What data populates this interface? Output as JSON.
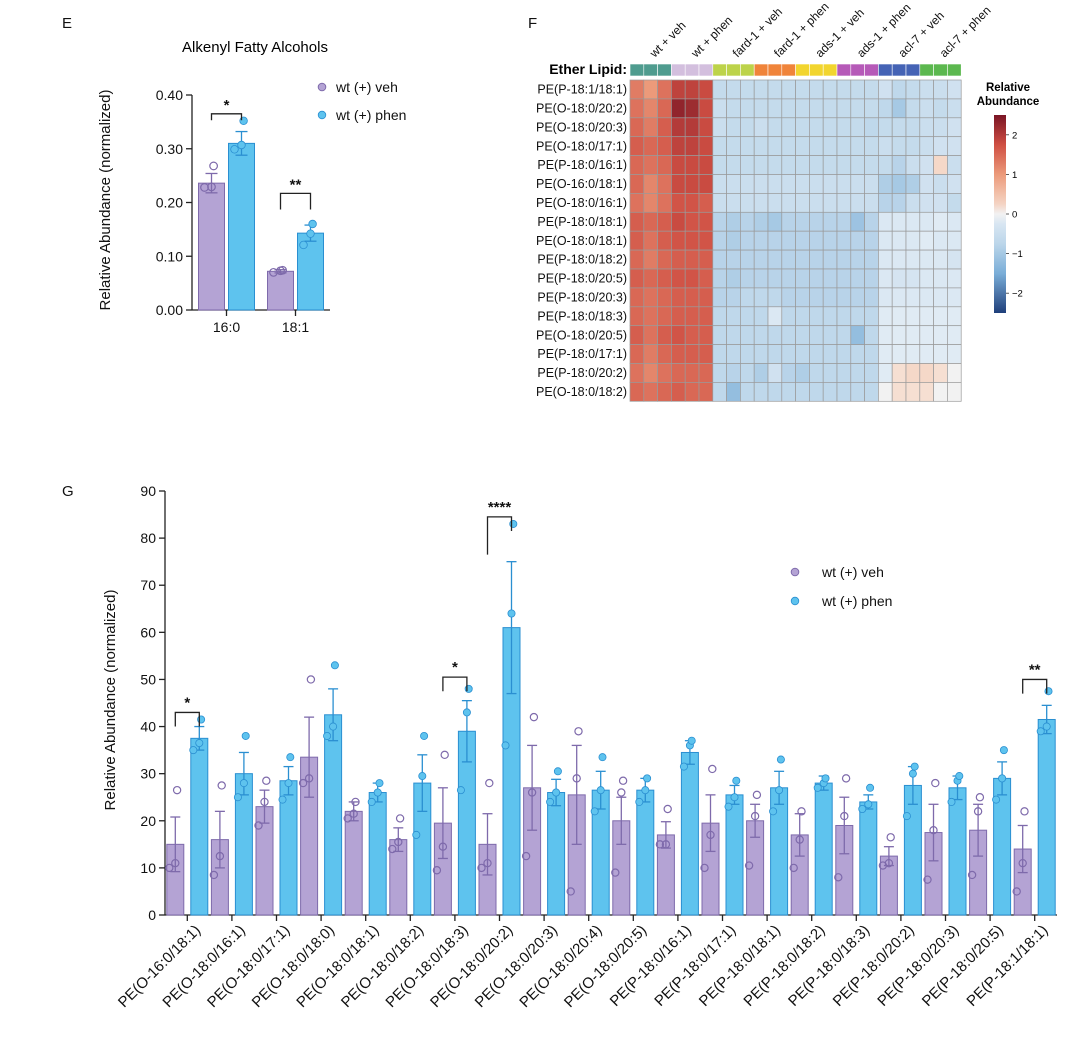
{
  "colors": {
    "veh_fill": "#b4a3d4",
    "veh_edge": "#7e6aab",
    "phen_fill": "#5ec3ee",
    "phen_edge": "#2a8fd1",
    "heat_high": "#7a1424",
    "heat_mid": "#f2f2f2",
    "heat_low": "#1f3f7a"
  },
  "panels": {
    "E": {
      "letter": "E",
      "chart_data": {
        "type": "bar",
        "title": "Alkenyl Fatty Alcohols",
        "ylabel": "Relative Abundance (normalized)",
        "xlabel": "",
        "ylim": [
          0,
          0.4
        ],
        "yticks": [
          "0.00",
          "0.10",
          "0.20",
          "0.30",
          "0.40"
        ],
        "categories": [
          "16:0",
          "18:1"
        ],
        "series": [
          {
            "name": "wt (+) veh",
            "values": [
              0.236,
              0.072
            ],
            "err": [
              0.018,
              0.003
            ],
            "points": [
              [
                0.228,
                0.229,
                0.268
              ],
              [
                0.07,
                0.073,
                0.074
              ]
            ]
          },
          {
            "name": "wt (+) phen",
            "values": [
              0.31,
              0.143
            ],
            "err": [
              0.022,
              0.015
            ],
            "points": [
              [
                0.299,
                0.307,
                0.352
              ],
              [
                0.121,
                0.142,
                0.16
              ]
            ]
          }
        ],
        "significance": [
          "*",
          "**"
        ],
        "legend_position": "top-right"
      }
    },
    "F": {
      "letter": "F",
      "chart_data": {
        "type": "heatmap",
        "group_bar_label": "Ether Lipid:",
        "colorbar_title": [
          "Relative",
          "Abundance"
        ],
        "colorbar_ticks": [
          "2",
          "1",
          "0",
          "-1",
          "-2"
        ],
        "vmin": -2.5,
        "vmax": 2.5,
        "groups": [
          {
            "label": "wt + veh",
            "color": "#4f9c8f"
          },
          {
            "label": "wt + phen",
            "color": "#d3bfde"
          },
          {
            "label": "fard-1 + veh",
            "color": "#bdd34a"
          },
          {
            "label": "fard-1 + phen",
            "color": "#f0843a"
          },
          {
            "label": "ads-1 + veh",
            "color": "#f2d52e"
          },
          {
            "label": "ads-1 + phen",
            "color": "#b65ab8"
          },
          {
            "label": "acl-7 + veh",
            "color": "#4563b5"
          },
          {
            "label": "acl-7 + phen",
            "color": "#5cb84f"
          }
        ],
        "rows": [
          {
            "label": "PE(P-18:1/18:1)",
            "values": [
              1.3,
              1.0,
              1.4,
              1.9,
              1.9,
              1.8,
              -0.6,
              -0.6,
              -0.6,
              -0.6,
              -0.6,
              -0.6,
              -0.6,
              -0.6,
              -0.6,
              -0.6,
              -0.6,
              -0.6,
              -0.4,
              -0.7,
              -0.6,
              -0.5,
              -0.5,
              -0.4
            ]
          },
          {
            "label": "PE(O-18:0/20:2)",
            "values": [
              1.4,
              1.2,
              1.5,
              2.3,
              2.2,
              1.8,
              -0.5,
              -0.6,
              -0.6,
              -0.6,
              -0.6,
              -0.6,
              -0.6,
              -0.6,
              -0.6,
              -0.6,
              -0.6,
              -0.6,
              -0.7,
              -1.0,
              -0.6,
              -0.5,
              -0.6,
              -0.5
            ]
          },
          {
            "label": "PE(O-18:0/20:3)",
            "values": [
              1.5,
              1.3,
              1.6,
              2.0,
              2.0,
              1.8,
              -0.5,
              -0.6,
              -0.6,
              -0.5,
              -0.6,
              -0.6,
              -0.6,
              -0.6,
              -0.6,
              -0.6,
              -0.6,
              -0.7,
              -0.6,
              -0.6,
              -0.6,
              -0.5,
              -0.5,
              -0.4
            ]
          },
          {
            "label": "PE(O-18:0/17:1)",
            "values": [
              1.6,
              1.5,
              1.6,
              1.9,
              1.9,
              1.8,
              -0.6,
              -0.6,
              -0.6,
              -0.6,
              -0.6,
              -0.6,
              -0.6,
              -0.6,
              -0.6,
              -0.6,
              -0.6,
              -0.6,
              -0.5,
              -0.6,
              -0.6,
              -0.5,
              -0.4,
              -0.4
            ]
          },
          {
            "label": "PE(P-18:0/16:1)",
            "values": [
              1.5,
              1.4,
              1.5,
              1.8,
              1.8,
              1.8,
              -0.6,
              -0.6,
              -0.6,
              -0.6,
              -0.6,
              -0.6,
              -0.6,
              -0.6,
              -0.6,
              -0.6,
              -0.6,
              -0.6,
              -0.6,
              -0.8,
              -0.5,
              -0.4,
              0.2,
              -0.5
            ]
          },
          {
            "label": "PE(O-16:0/18:1)",
            "values": [
              1.5,
              1.2,
              1.4,
              1.8,
              1.8,
              1.8,
              -0.5,
              -0.5,
              -0.5,
              -0.5,
              -0.5,
              -0.5,
              -0.5,
              -0.5,
              -0.5,
              -0.5,
              -0.5,
              -0.5,
              -0.9,
              -1.0,
              -0.9,
              -0.4,
              -0.5,
              -0.4
            ]
          },
          {
            "label": "PE(O-18:0/16:1)",
            "values": [
              1.4,
              1.2,
              1.4,
              1.7,
              1.7,
              1.6,
              -0.5,
              -0.5,
              -0.5,
              -0.5,
              -0.5,
              -0.5,
              -0.5,
              -0.5,
              -0.5,
              -0.5,
              -0.5,
              -0.5,
              -0.8,
              -0.8,
              -0.5,
              -0.4,
              -0.4,
              -0.6
            ]
          },
          {
            "label": "PE(P-18:0/18:1)",
            "values": [
              1.6,
              1.5,
              1.6,
              1.8,
              1.7,
              1.7,
              -0.8,
              -0.9,
              -0.8,
              -0.9,
              -1.0,
              -0.8,
              -0.8,
              -0.8,
              -0.8,
              -0.8,
              -1.1,
              -0.8,
              -0.2,
              -0.2,
              -0.2,
              -0.2,
              -0.1,
              -0.2
            ]
          },
          {
            "label": "PE(O-18:0/18:1)",
            "values": [
              1.6,
              1.4,
              1.6,
              1.7,
              1.7,
              1.7,
              -0.8,
              -0.9,
              -0.8,
              -0.8,
              -0.8,
              -0.8,
              -0.8,
              -0.8,
              -0.8,
              -0.8,
              -0.8,
              -0.8,
              -0.2,
              -0.2,
              -0.2,
              -0.1,
              -0.2,
              -0.2
            ]
          },
          {
            "label": "PE(P-18:0/18:2)",
            "values": [
              1.5,
              1.3,
              1.5,
              1.6,
              1.6,
              1.6,
              -0.8,
              -0.8,
              -0.8,
              -0.8,
              -0.8,
              -0.8,
              -0.8,
              -0.8,
              -0.8,
              -0.8,
              -0.8,
              -0.8,
              -0.2,
              -0.2,
              -0.2,
              -0.2,
              -0.2,
              -0.3
            ]
          },
          {
            "label": "PE(P-18:0/20:5)",
            "values": [
              1.6,
              1.5,
              1.6,
              1.7,
              1.7,
              1.6,
              -0.8,
              -0.9,
              -0.8,
              -0.8,
              -0.8,
              -0.8,
              -0.8,
              -0.8,
              -0.8,
              -0.8,
              -0.8,
              -0.8,
              -0.2,
              -0.3,
              -0.3,
              -0.2,
              -0.2,
              -0.2
            ]
          },
          {
            "label": "PE(P-18:0/20:3)",
            "values": [
              1.5,
              1.4,
              1.5,
              1.6,
              1.6,
              1.6,
              -0.8,
              -0.8,
              -0.7,
              -0.7,
              -0.7,
              -0.8,
              -0.8,
              -0.8,
              -0.8,
              -0.8,
              -0.8,
              -0.8,
              -0.2,
              -0.2,
              -0.2,
              -0.2,
              -0.2,
              -0.2
            ]
          },
          {
            "label": "PE(P-18:0/18:3)",
            "values": [
              1.5,
              1.4,
              1.5,
              1.6,
              1.6,
              1.6,
              -0.7,
              -0.7,
              -0.7,
              -0.7,
              -0.2,
              -0.7,
              -0.7,
              -0.7,
              -0.7,
              -0.7,
              -0.7,
              -0.7,
              -0.1,
              -0.1,
              -0.1,
              -0.1,
              -0.1,
              -0.1
            ]
          },
          {
            "label": "PE(O-18:0/20:5)",
            "values": [
              1.6,
              1.4,
              1.6,
              1.7,
              1.6,
              1.6,
              -0.7,
              -0.7,
              -0.7,
              -0.7,
              -0.7,
              -0.7,
              -0.7,
              -0.7,
              -0.7,
              -0.7,
              -1.2,
              -0.7,
              -0.1,
              -0.1,
              -0.1,
              -0.1,
              -0.1,
              -0.1
            ]
          },
          {
            "label": "PE(P-18:0/17:1)",
            "values": [
              1.5,
              1.3,
              1.5,
              1.6,
              1.6,
              1.6,
              -0.7,
              -0.7,
              -0.7,
              -0.7,
              -0.7,
              -0.7,
              -0.7,
              -0.7,
              -0.7,
              -0.7,
              -0.7,
              -0.7,
              -0.1,
              -0.1,
              -0.1,
              -0.1,
              -0.1,
              -0.1
            ]
          },
          {
            "label": "PE(P-18:0/20:2)",
            "values": [
              1.4,
              1.2,
              1.4,
              1.5,
              1.5,
              1.5,
              -0.7,
              -0.8,
              -0.7,
              -0.9,
              -0.4,
              -0.8,
              -0.9,
              -0.7,
              -0.7,
              -0.7,
              -0.7,
              -0.7,
              -0.1,
              0.1,
              0.2,
              0.2,
              0.1,
              0.0
            ]
          },
          {
            "label": "PE(O-18:0/18:2)",
            "values": [
              1.5,
              1.4,
              1.5,
              1.6,
              1.5,
              1.5,
              -0.7,
              -1.2,
              -0.7,
              -0.7,
              -0.7,
              -0.7,
              -0.7,
              -0.7,
              -0.7,
              -0.7,
              -0.7,
              -0.7,
              0.0,
              0.1,
              0.1,
              0.1,
              0.0,
              0.0
            ]
          }
        ]
      }
    },
    "G": {
      "letter": "G",
      "chart_data": {
        "type": "bar",
        "title": "",
        "ylabel": "Relative Abundance (normalized)",
        "xlabel": "",
        "ylim": [
          0,
          90
        ],
        "yticks": [
          "0",
          "10",
          "20",
          "30",
          "40",
          "50",
          "60",
          "70",
          "80",
          "90"
        ],
        "categories": [
          "PE(O-16:0/18:1)",
          "PE(O-18:0/16:1)",
          "PE(O-18:0/17:1)",
          "PE(O-18:0/18:0)",
          "PE(O-18:0/18:1)",
          "PE(O-18:0/18:2)",
          "PE(O-18:0/18:3)",
          "PE(O-18:0/20:2)",
          "PE(O-18:0/20:3)",
          "PE(O-18:0/20:4)",
          "PE(O-18:0/20:5)",
          "PE(P-18:0/16:1)",
          "PE(P-18:0/17:1)",
          "PE(P-18:0/18:1)",
          "PE(P-18:0/18:2)",
          "PE(P-18:0/18:3)",
          "PE(P-18:0/20:2)",
          "PE(P-18:0/20:3)",
          "PE(P-18:0/20:5)",
          "PE(P-18:1/18:1)"
        ],
        "series": [
          {
            "name": "wt (+) veh",
            "values": [
              15,
              16,
              23,
              33.5,
              22,
              16,
              19.5,
              15,
              27,
              25.5,
              20,
              17,
              19.5,
              20,
              17,
              19,
              12.5,
              17.5,
              18,
              14
            ],
            "err": [
              5.8,
              6,
              3.5,
              8.5,
              2,
              2.5,
              7.5,
              6.5,
              9,
              10.5,
              5,
              2.8,
              6,
              3.5,
              4.5,
              6,
              2,
              6,
              5.5,
              5
            ],
            "points": [
              [
                10,
                11,
                26.5
              ],
              [
                8.5,
                12.5,
                27.5
              ],
              [
                19,
                24,
                28.5
              ],
              [
                28,
                29,
                50
              ],
              [
                20.5,
                21.5,
                24
              ],
              [
                14,
                15.5,
                20.5
              ],
              [
                9.5,
                14.5,
                34
              ],
              [
                10,
                11,
                28
              ],
              [
                12.5,
                26,
                42
              ],
              [
                5,
                29,
                39
              ],
              [
                9,
                26,
                28.5
              ],
              [
                15,
                15,
                22.5
              ],
              [
                10,
                17,
                31
              ],
              [
                10.5,
                21,
                25.5
              ],
              [
                10,
                16,
                22
              ],
              [
                8,
                21,
                29
              ],
              [
                10.5,
                11,
                16.5
              ],
              [
                7.5,
                18,
                28
              ],
              [
                8.5,
                22,
                25
              ],
              [
                5,
                11,
                22
              ]
            ]
          },
          {
            "name": "wt (+) phen",
            "values": [
              37.5,
              30,
              28.5,
              42.5,
              26,
              28,
              39,
              61,
              26,
              26.5,
              26.5,
              34.5,
              25.5,
              27,
              28,
              24,
              27.5,
              27,
              29,
              41.5
            ],
            "err": [
              2.5,
              4.5,
              3,
              5.5,
              2,
              6,
              6.5,
              14,
              2.8,
              4,
              2.5,
              2.5,
              2,
              3.5,
              1.5,
              1.5,
              4,
              2.5,
              3.5,
              3
            ],
            "points": [
              [
                35,
                36.5,
                41.5
              ],
              [
                25,
                28,
                38
              ],
              [
                24.5,
                28,
                33.5
              ],
              [
                38,
                40,
                53
              ],
              [
                24,
                26,
                28
              ],
              [
                17,
                29.5,
                38
              ],
              [
                26.5,
                43,
                48
              ],
              [
                36,
                64,
                83
              ],
              [
                24,
                26,
                30.5
              ],
              [
                22,
                26.5,
                33.5
              ],
              [
                24,
                26.5,
                29
              ],
              [
                31.5,
                36,
                37
              ],
              [
                23,
                25,
                28.5
              ],
              [
                22,
                26.5,
                33
              ],
              [
                27,
                28,
                29
              ],
              [
                22.5,
                23.5,
                27
              ],
              [
                21,
                30,
                31.5
              ],
              [
                24,
                28.5,
                29.5
              ],
              [
                24.5,
                29,
                35
              ],
              [
                39,
                40,
                47.5
              ]
            ]
          }
        ],
        "significance": [
          {
            "index": 0,
            "label": "*",
            "y": 43
          },
          {
            "index": 6,
            "label": "*",
            "y": 50.5
          },
          {
            "index": 7,
            "label": "****",
            "y": 84.5
          },
          {
            "index": 19,
            "label": "**",
            "y": 50
          }
        ],
        "legend_position": "top-right"
      }
    }
  }
}
